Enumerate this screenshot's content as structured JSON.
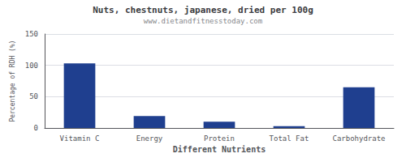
{
  "chart_data": {
    "type": "bar",
    "title": "Nuts, chestnuts, japanese, dried per 100g",
    "subtitle": "www.dietandfitnesstoday.com",
    "xlabel": "Different Nutrients",
    "ylabel": "Percentage of RDH (%)",
    "categories": [
      "Vitamin C",
      "Energy",
      "Protein",
      "Total Fat",
      "Carbohydrate"
    ],
    "values": [
      103,
      19,
      10,
      3,
      65
    ],
    "color": "#1f3f8f",
    "ylim": [
      0,
      150
    ],
    "yticks": [
      0,
      50,
      100,
      150
    ],
    "grid": true
  }
}
